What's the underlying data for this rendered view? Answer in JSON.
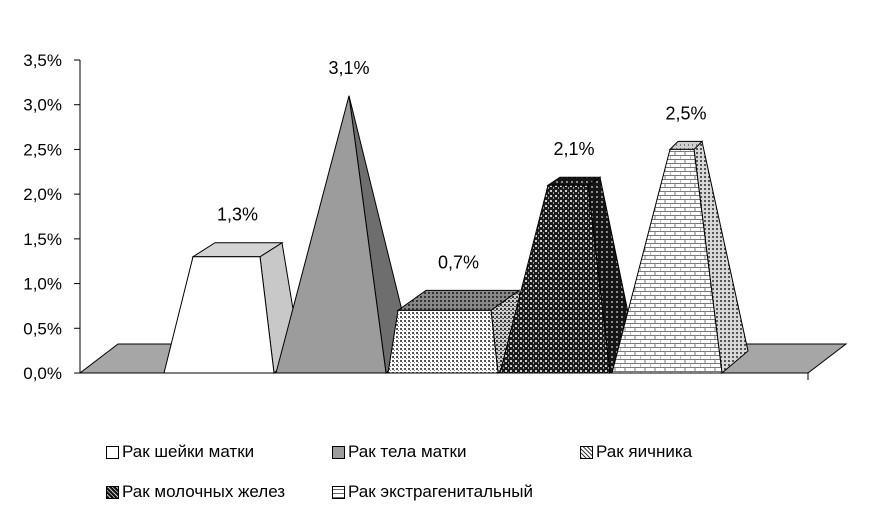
{
  "chart_data": {
    "type": "bar",
    "style": "3d-pyramids",
    "categories": [
      "Рак шейки матки",
      "Рак тела матки",
      "Рак яичника",
      "Рак молочных желез",
      "Рак экстрагенитальный"
    ],
    "values": [
      1.3,
      3.1,
      0.7,
      2.1,
      2.5
    ],
    "data_labels": [
      "1,3%",
      "3,1%",
      "0,7%",
      "2,1%",
      "2,5%"
    ],
    "y_ticks": [
      "0,0%",
      "0,5%",
      "1,0%",
      "1,5%",
      "2,0%",
      "2,5%",
      "3,0%",
      "3,5%"
    ],
    "ylim": [
      0,
      3.5
    ],
    "title": "",
    "xlabel": "",
    "ylabel": "",
    "grid": false,
    "legend_position": "bottom",
    "legend": {
      "items": [
        {
          "label": "Рак шейки матки",
          "fill": "white"
        },
        {
          "label": "Рак тела матки",
          "fill": "gray"
        },
        {
          "label": "Рак яичника",
          "fill": "dots"
        },
        {
          "label": "Рак молочных желез",
          "fill": "dark-dots"
        },
        {
          "label": "Рак экстрагенитальный",
          "fill": "bricks"
        }
      ]
    },
    "colors": {
      "floor": "#a6a6a6",
      "white_front": "#ffffff",
      "white_side": "#c8c8c8",
      "gray_front": "#9c9c9c",
      "gray_side": "#6e6e6e",
      "outline": "#000000"
    }
  }
}
